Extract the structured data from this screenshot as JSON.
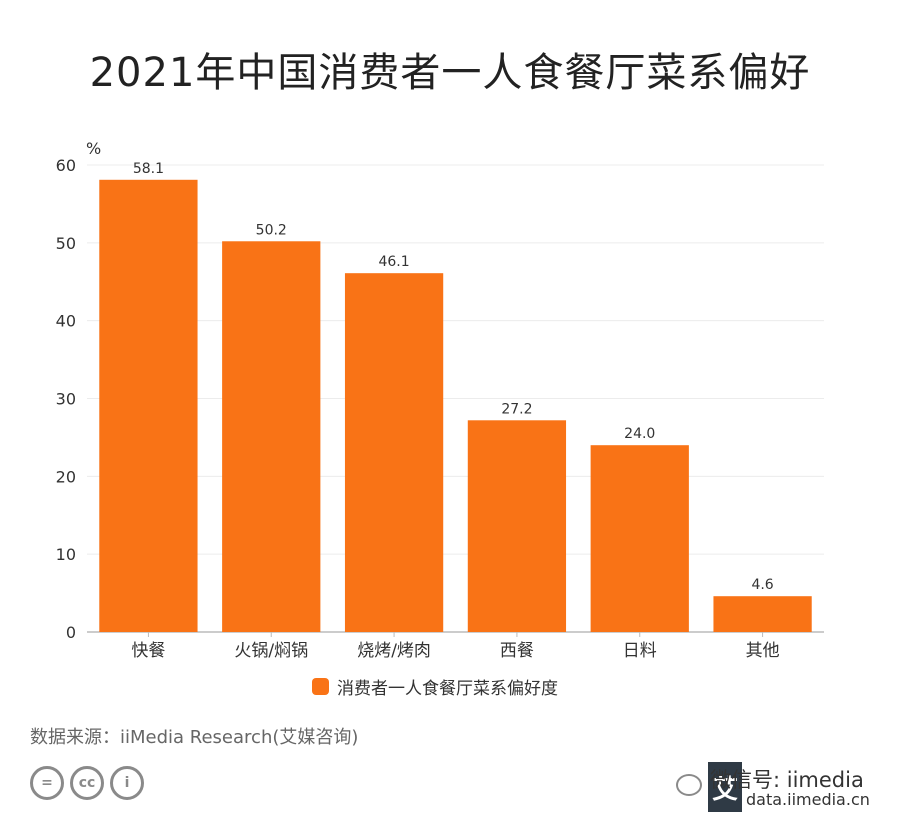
{
  "title": "2021年中国消费者一人食餐厅菜系偏好",
  "chart_data": {
    "type": "bar",
    "title": "2021年中国消费者一人食餐厅菜系偏好",
    "ylabel": "%",
    "xlabel": "",
    "ylim": [
      0,
      60
    ],
    "yticks": [
      0,
      10,
      20,
      30,
      40,
      50,
      60
    ],
    "categories": [
      "快餐",
      "火锅/焖锅",
      "烧烤/烤肉",
      "西餐",
      "日料",
      "其他"
    ],
    "series": [
      {
        "name": "消费者一人食餐厅菜系偏好度",
        "values": [
          58.1,
          50.2,
          46.1,
          27.2,
          24.0,
          4.6
        ],
        "color": "#f97316"
      }
    ],
    "data_labels": [
      "58.1",
      "50.2",
      "46.1",
      "27.2",
      "24.0",
      "4.6"
    ],
    "grid": true,
    "legend_position": "bottom"
  },
  "source": "数据来源：iiMedia Research(艾媒咨询)",
  "license_icons": [
    "equal-icon",
    "cc-icon",
    "person-icon"
  ],
  "license_glyphs": [
    "=",
    "cc",
    "i"
  ],
  "watermark": {
    "line1": "微信号: iimedia",
    "line2": "data.iimedia.cn",
    "logo_glyph": "艾"
  }
}
